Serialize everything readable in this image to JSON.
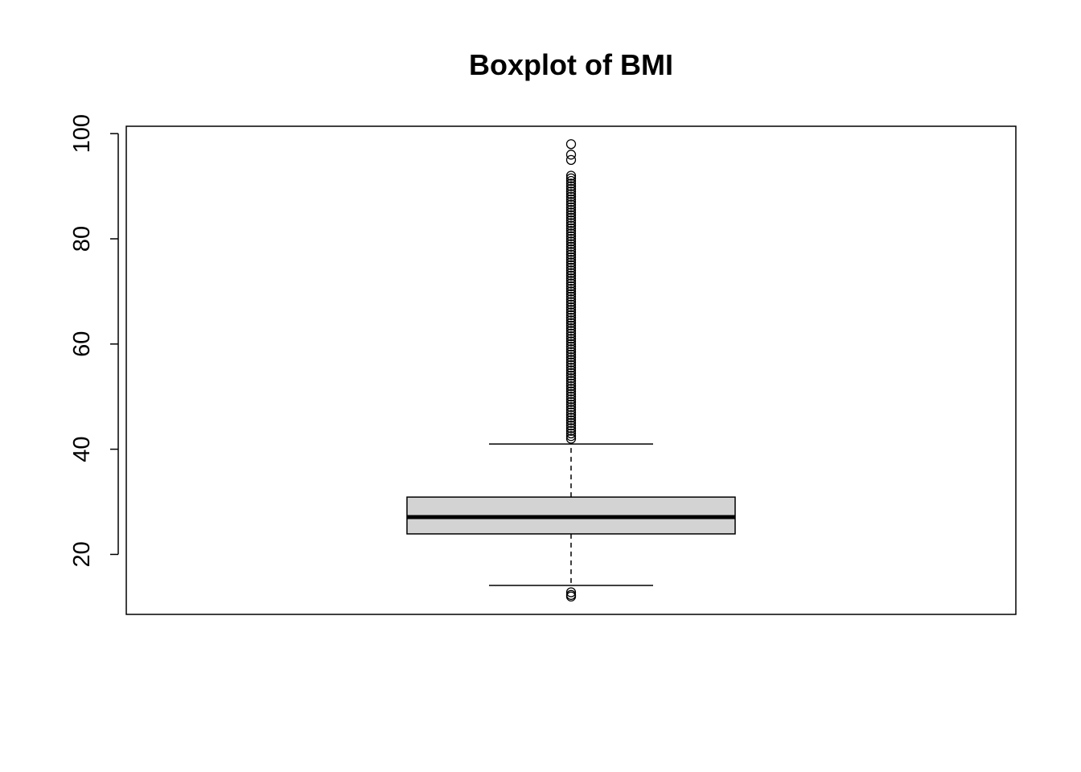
{
  "chart_data": {
    "type": "boxplot",
    "title": "Boxplot of BMI",
    "xlabel": "",
    "ylabel": "",
    "ylim": [
      8.6,
      101.4
    ],
    "yticks": [
      20,
      40,
      60,
      80,
      100
    ],
    "grid": false,
    "legend": "none",
    "box_fill": "#d3d3d3",
    "stroke": "#000000",
    "box": {
      "lower_whisker": 14.1,
      "q1": 23.9,
      "median": 27.1,
      "q3": 30.9,
      "upper_whisker": 41.0
    },
    "outliers": [
      12.0,
      12.3,
      12.8,
      42.0,
      42.5,
      43.0,
      43.5,
      44.0,
      44.5,
      45.0,
      45.5,
      46.0,
      46.5,
      47.0,
      47.5,
      48.0,
      48.5,
      49.0,
      49.5,
      50.0,
      50.5,
      51.0,
      51.5,
      52.0,
      52.5,
      53.0,
      53.5,
      54.0,
      54.5,
      55.0,
      55.5,
      56.0,
      56.5,
      57.0,
      57.5,
      58.0,
      58.5,
      59.0,
      59.5,
      60.0,
      60.5,
      61.0,
      61.5,
      62.0,
      62.5,
      63.0,
      63.5,
      64.0,
      64.5,
      65.0,
      65.5,
      66.0,
      66.5,
      67.0,
      67.5,
      68.0,
      68.5,
      69.0,
      69.5,
      70.0,
      70.5,
      71.0,
      71.5,
      72.0,
      72.5,
      73.0,
      73.5,
      74.0,
      74.5,
      75.0,
      75.5,
      76.0,
      76.5,
      77.0,
      77.5,
      78.0,
      78.5,
      79.0,
      79.5,
      80.0,
      80.5,
      81.0,
      81.5,
      82.0,
      82.5,
      83.0,
      83.5,
      84.0,
      84.5,
      85.0,
      85.5,
      86.0,
      86.5,
      87.0,
      87.5,
      88.0,
      88.5,
      89.0,
      89.5,
      90.0,
      90.5,
      91.0,
      91.5,
      92.0,
      95.0,
      96.0,
      98.0
    ]
  }
}
